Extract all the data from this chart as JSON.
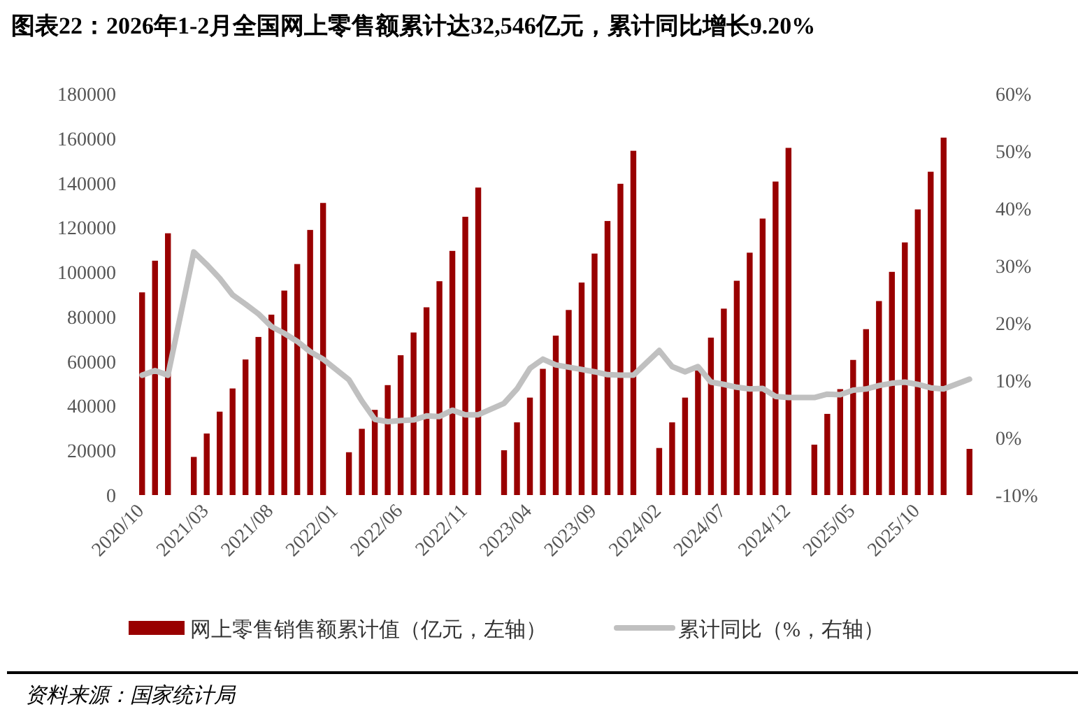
{
  "chart_data": {
    "type": "bar",
    "title": "图表22：2026年1-2月全国网上零售额累计达32,546亿元，累计同比增长9.20%",
    "categories": [
      "2020/10",
      null,
      null,
      null,
      null,
      "2021/03",
      null,
      null,
      null,
      null,
      "2021/08",
      null,
      null,
      null,
      null,
      "2022/01",
      null,
      null,
      null,
      null,
      "2022/06",
      null,
      null,
      null,
      null,
      "2022/11",
      null,
      null,
      null,
      null,
      "2023/04",
      null,
      null,
      null,
      null,
      "2023/09",
      null,
      null,
      null,
      null,
      "2024/02",
      null,
      null,
      null,
      null,
      "2024/07",
      null,
      null,
      null,
      null,
      "2024/12",
      null,
      null,
      null,
      null,
      "2025/05",
      null,
      null,
      null,
      null,
      "2025/10",
      null,
      null,
      null,
      null
    ],
    "series": [
      {
        "name": "网上零售销售额累计值（亿元，左轴）",
        "color": "#990000",
        "values": [
          90900,
          105100,
          117400,
          null,
          17100,
          27600,
          37400,
          47800,
          60800,
          70900,
          80900,
          91700,
          103600,
          118900,
          131000,
          null,
          19200,
          29700,
          38200,
          49300,
          62700,
          72900,
          84200,
          95900,
          109500,
          124800,
          137900,
          null,
          20100,
          32600,
          43700,
          56600,
          71500,
          83000,
          95300,
          108300,
          122900,
          139600,
          154400,
          null,
          21100,
          32600,
          43700,
          55800,
          70600,
          83600,
          96100,
          108700,
          124000,
          140600,
          155700,
          null,
          22600,
          36400,
          47500,
          60600,
          74400,
          87000,
          100100,
          113300,
          128100,
          145000,
          160300,
          null,
          20700
        ]
      },
      {
        "name": "累计同比（%，右轴）",
        "type": "line",
        "axis": "y2",
        "color": "#c0c0c0",
        "values": [
          10.9,
          11.7,
          10.9,
          null,
          32.4,
          30.2,
          27.8,
          24.9,
          23.3,
          21.6,
          19.4,
          18.2,
          16.8,
          15.0,
          13.7,
          null,
          10.1,
          6.4,
          3.2,
          2.8,
          3.0,
          3.1,
          3.8,
          3.7,
          4.8,
          4.0,
          4.0,
          null,
          6.0,
          8.5,
          12.1,
          13.7,
          12.7,
          12.3,
          11.9,
          11.5,
          11.0,
          10.9,
          10.9,
          null,
          15.2,
          12.4,
          11.5,
          12.4,
          9.7,
          9.3,
          8.8,
          8.5,
          8.6,
          7.2,
          7.0,
          null,
          7.0,
          7.6,
          7.5,
          8.3,
          8.5,
          9.1,
          9.5,
          9.7,
          9.3,
          8.7,
          8.5,
          null,
          10.2
        ]
      }
    ],
    "ylim": [
      0,
      180000
    ],
    "yticks": [
      0,
      20000,
      40000,
      60000,
      80000,
      100000,
      120000,
      140000,
      160000,
      180000
    ],
    "y2lim": [
      -10,
      60
    ],
    "y2ticks": [
      {
        "value": -10,
        "label": "-10%"
      },
      {
        "value": 0,
        "label": "0%"
      },
      {
        "value": 10,
        "label": "10%"
      },
      {
        "value": 20,
        "label": "20%"
      },
      {
        "value": 30,
        "label": "30%"
      },
      {
        "value": 40,
        "label": "40%"
      },
      {
        "value": 50,
        "label": "50%"
      },
      {
        "value": 60,
        "label": "60%"
      }
    ],
    "grid": false,
    "legend": "bottom",
    "annotations": [
      "资料来源：国家统计局"
    ]
  }
}
